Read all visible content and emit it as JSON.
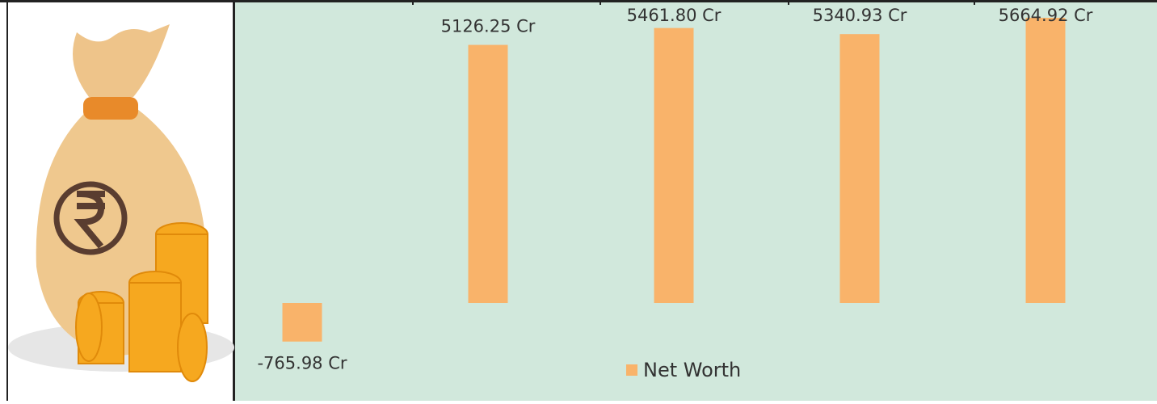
{
  "chart_data": {
    "type": "bar",
    "categories": [
      null,
      null,
      null,
      null,
      null
    ],
    "series": [
      {
        "name": "Net Worth",
        "color": "#f9b36a",
        "values": [
          -765.98,
          5126.25,
          5461.8,
          5340.93,
          5664.92
        ],
        "value_labels": [
          "-765.98 Cr",
          "5126.25 Cr",
          "5461.80 Cr",
          "5340.93 Cr",
          "5664.92 Cr"
        ]
      }
    ],
    "legend": "bottom"
  }
}
